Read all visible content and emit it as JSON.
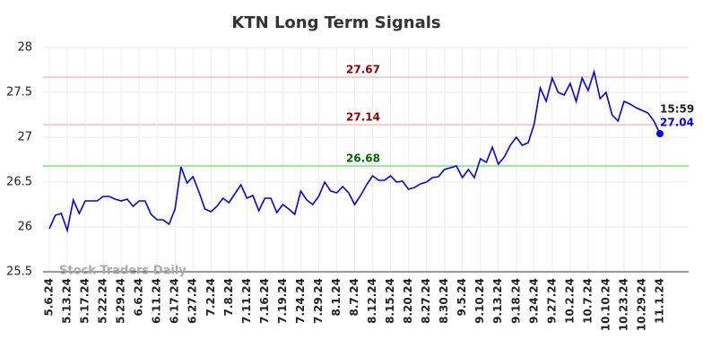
{
  "chart_data": {
    "type": "line",
    "title": "KTN Long Term Signals",
    "watermark": "Stock Traders Daily",
    "categories": [
      "5.6.24",
      null,
      null,
      "5.13.24",
      null,
      null,
      "5.17.24",
      null,
      null,
      "5.22.24",
      null,
      null,
      "5.29.24",
      null,
      null,
      "6.6.24",
      null,
      null,
      "6.11.24",
      null,
      null,
      "6.17.24",
      null,
      null,
      "6.27.24",
      null,
      null,
      "7.2.24",
      null,
      null,
      "7.8.24",
      null,
      null,
      "7.11.24",
      null,
      null,
      "7.16.24",
      null,
      null,
      "7.19.24",
      null,
      null,
      "7.24.24",
      null,
      null,
      "7.29.24",
      null,
      null,
      "8.1.24",
      null,
      null,
      "8.7.24",
      null,
      null,
      "8.12.24",
      null,
      null,
      "8.15.24",
      null,
      null,
      "8.20.24",
      null,
      null,
      "8.27.24",
      null,
      null,
      "8.30.24",
      null,
      null,
      "9.5.24",
      null,
      null,
      "9.10.24",
      null,
      null,
      "9.13.24",
      null,
      null,
      "9.18.24",
      null,
      null,
      "9.24.24",
      null,
      null,
      "9.27.24",
      null,
      null,
      "10.2.24",
      null,
      null,
      "10.7.24",
      null,
      null,
      "10.10.24",
      null,
      null,
      "10.23.24",
      null,
      null,
      "10.29.24",
      null,
      null,
      "11.1.24"
    ],
    "series": [
      {
        "name": "KTN",
        "color": "#0000ff",
        "values": [
          25.98,
          26.13,
          26.15,
          25.96,
          26.3,
          26.15,
          26.29,
          26.29,
          26.29,
          26.34,
          26.34,
          26.31,
          26.29,
          26.31,
          26.23,
          26.29,
          26.29,
          26.14,
          26.08,
          26.08,
          26.03,
          26.2,
          26.67,
          26.49,
          26.56,
          26.39,
          26.2,
          26.17,
          26.23,
          26.32,
          26.27,
          26.37,
          26.47,
          26.32,
          26.35,
          26.18,
          26.32,
          26.32,
          26.16,
          26.25,
          26.2,
          26.14,
          26.4,
          26.3,
          26.25,
          26.34,
          26.5,
          26.4,
          26.38,
          26.45,
          26.38,
          26.25,
          26.35,
          26.47,
          26.57,
          26.52,
          26.52,
          26.57,
          26.5,
          26.51,
          26.42,
          26.44,
          26.48,
          26.5,
          26.55,
          26.56,
          26.64,
          26.66,
          26.68,
          26.55,
          26.64,
          26.55,
          26.76,
          26.72,
          26.89,
          26.7,
          26.78,
          26.91,
          27.0,
          26.91,
          26.94,
          27.15,
          27.55,
          27.4,
          27.66,
          27.5,
          27.47,
          27.6,
          27.4,
          27.66,
          27.52,
          27.73,
          27.43,
          27.5,
          27.25,
          27.18,
          27.4,
          27.37,
          27.33,
          27.3,
          27.27,
          27.18,
          27.04
        ]
      }
    ],
    "last_time_label": "15:59",
    "hlines": [
      {
        "value": 27.67,
        "color": "#ffcccc",
        "label_color": "#8b0000"
      },
      {
        "value": 27.14,
        "color": "#ffcccc",
        "label_color": "#8b0000"
      },
      {
        "value": 26.68,
        "color": "#99ee99",
        "label_color": "#006400"
      }
    ],
    "ylim": [
      25.5,
      28
    ],
    "yticks": [
      25.5,
      26,
      26.5,
      27,
      27.5,
      28
    ],
    "grid": true
  }
}
